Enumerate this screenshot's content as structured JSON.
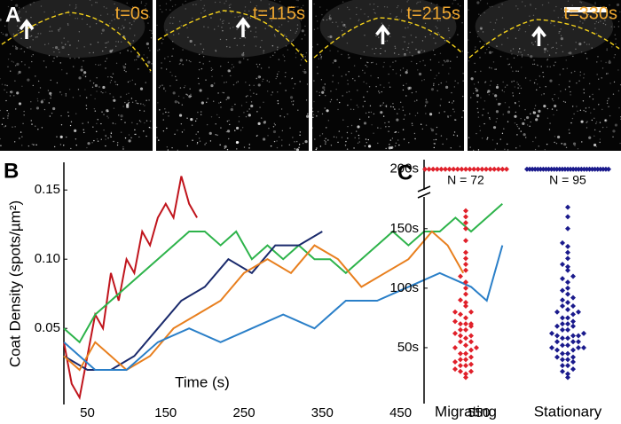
{
  "panel_a": {
    "label": "A",
    "frames": [
      "t=0s",
      "t=115s",
      "t=215s",
      "t=330s"
    ]
  },
  "chart_data": [
    {
      "type": "line",
      "label": "B",
      "ylabel": "Coat Density (spots/µm²)",
      "xlabel": "Time (s)",
      "xlim": [
        20,
        600
      ],
      "xticks": [
        50,
        150,
        250,
        350,
        450,
        550
      ],
      "ylim": [
        -0.005,
        0.17
      ],
      "yticks": [
        0.05,
        {
          "value": 0.1,
          "label": "0.10"
        },
        0.15
      ],
      "series": [
        {
          "color": "#c0141c",
          "x": [
            20,
            30,
            40,
            50,
            60,
            70,
            80,
            90,
            100,
            110,
            120,
            130,
            140,
            150,
            160,
            170,
            180,
            190
          ],
          "values": [
            0.04,
            0.01,
            0.0,
            0.03,
            0.06,
            0.05,
            0.09,
            0.07,
            0.1,
            0.09,
            0.12,
            0.11,
            0.13,
            0.14,
            0.13,
            0.16,
            0.14,
            0.13
          ]
        },
        {
          "color": "#2db34a",
          "x": [
            20,
            40,
            60,
            80,
            100,
            120,
            140,
            160,
            180,
            200,
            220,
            240,
            260,
            280,
            300,
            320,
            340,
            360,
            380,
            400,
            420,
            440,
            460,
            480,
            500,
            520,
            540,
            560,
            580
          ],
          "values": [
            0.05,
            0.04,
            0.06,
            0.07,
            0.08,
            0.09,
            0.1,
            0.11,
            0.12,
            0.12,
            0.11,
            0.12,
            0.1,
            0.11,
            0.1,
            0.11,
            0.1,
            0.1,
            0.09,
            0.1,
            0.11,
            0.12,
            0.11,
            0.12,
            0.12,
            0.13,
            0.12,
            0.13,
            0.14
          ]
        },
        {
          "color": "#1a2a6c",
          "x": [
            20,
            50,
            80,
            110,
            140,
            170,
            200,
            230,
            260,
            290,
            320,
            350
          ],
          "values": [
            0.03,
            0.02,
            0.02,
            0.03,
            0.05,
            0.07,
            0.08,
            0.1,
            0.09,
            0.11,
            0.11,
            0.12
          ]
        },
        {
          "color": "#e87f1e",
          "x": [
            20,
            40,
            60,
            80,
            100,
            130,
            160,
            190,
            220,
            250,
            280,
            310,
            340,
            370,
            400,
            430,
            460,
            490,
            510,
            530
          ],
          "values": [
            0.03,
            0.02,
            0.04,
            0.03,
            0.02,
            0.03,
            0.05,
            0.06,
            0.07,
            0.09,
            0.1,
            0.09,
            0.11,
            0.1,
            0.08,
            0.09,
            0.1,
            0.12,
            0.11,
            0.09
          ]
        },
        {
          "color": "#2a7fc8",
          "x": [
            20,
            60,
            100,
            140,
            180,
            220,
            260,
            300,
            340,
            380,
            420,
            460,
            500,
            540,
            560,
            580
          ],
          "values": [
            0.04,
            0.02,
            0.02,
            0.04,
            0.05,
            0.04,
            0.05,
            0.06,
            0.05,
            0.07,
            0.07,
            0.08,
            0.09,
            0.08,
            0.07,
            0.11
          ]
        }
      ]
    },
    {
      "type": "strip",
      "label": "C",
      "categories": [
        "Migrating",
        "Stationary"
      ],
      "ylim": [
        3,
        205
      ],
      "yticks": [
        {
          "value": 50,
          "label": "50s"
        },
        {
          "value": 100,
          "label": "100s"
        },
        {
          "value": 150,
          "label": "150s"
        },
        {
          "value": 200,
          "label": "200s"
        }
      ],
      "annotations": [
        "N = 72",
        "N = 95"
      ],
      "series": [
        {
          "color": "#e0202a",
          "values": [
            200,
            200,
            200,
            200,
            200,
            200,
            200,
            200,
            200,
            200,
            200,
            200,
            200,
            200,
            200,
            200,
            200,
            200,
            200,
            200,
            200,
            25,
            28,
            30,
            30,
            32,
            35,
            35,
            36,
            38,
            40,
            40,
            42,
            45,
            45,
            48,
            50,
            50,
            52,
            55,
            55,
            58,
            60,
            60,
            62,
            65,
            65,
            68,
            70,
            70,
            70,
            72,
            75,
            78,
            80,
            80,
            85,
            88,
            90,
            95,
            100,
            105,
            110,
            115,
            120,
            125,
            130,
            140,
            150,
            155,
            160,
            165
          ]
        },
        {
          "color": "#1a1a8c",
          "values": [
            200,
            200,
            200,
            200,
            200,
            200,
            200,
            200,
            200,
            200,
            200,
            200,
            200,
            200,
            200,
            200,
            200,
            200,
            200,
            200,
            200,
            200,
            200,
            200,
            200,
            200,
            200,
            200,
            200,
            200,
            200,
            25,
            28,
            30,
            32,
            35,
            35,
            38,
            40,
            40,
            42,
            42,
            45,
            45,
            48,
            48,
            50,
            50,
            50,
            52,
            52,
            55,
            55,
            55,
            58,
            58,
            60,
            60,
            60,
            62,
            62,
            65,
            65,
            68,
            68,
            70,
            70,
            72,
            75,
            75,
            78,
            80,
            80,
            82,
            85,
            85,
            88,
            90,
            92,
            95,
            98,
            100,
            105,
            108,
            110,
            115,
            118,
            120,
            125,
            130,
            135,
            138,
            150,
            160,
            168
          ]
        }
      ]
    }
  ]
}
